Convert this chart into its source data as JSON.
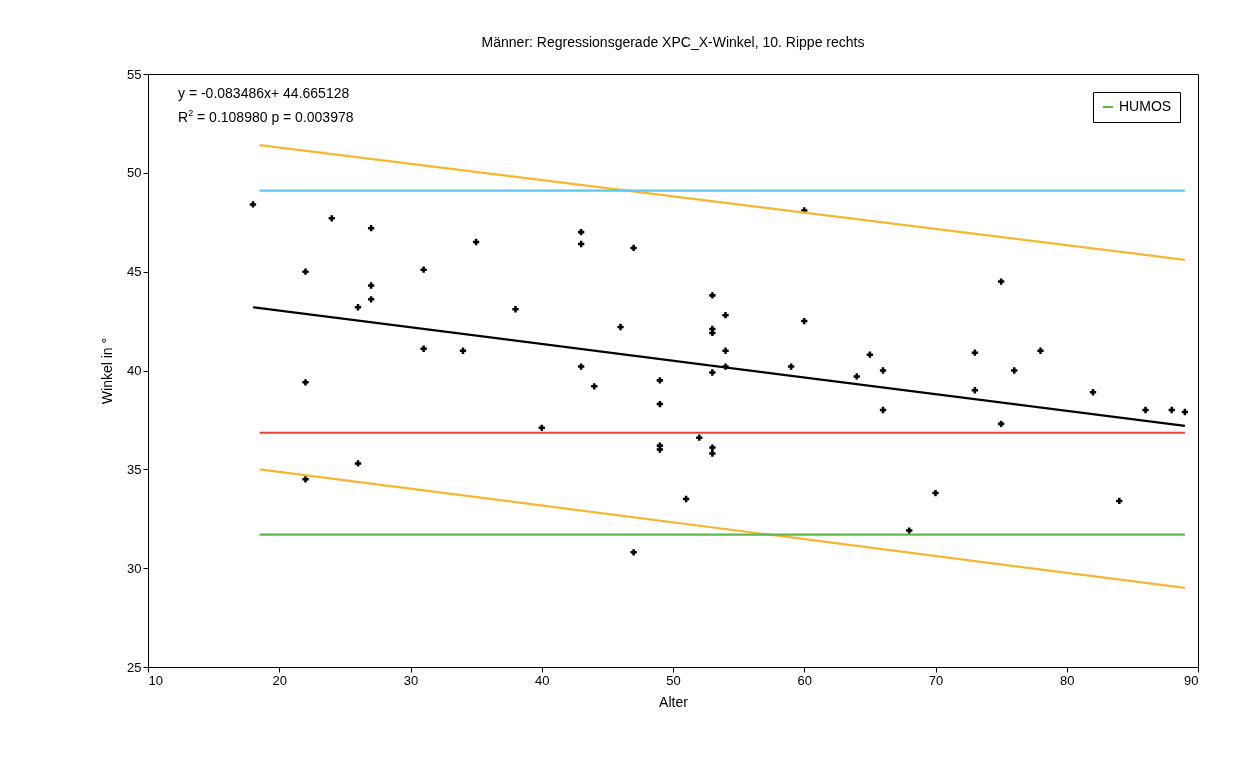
{
  "chart_data": {
    "type": "scatter",
    "title": "Männer: Regressionsgerade XPC_X-Winkel, 10. Rippe rechts",
    "xlabel": "Alter",
    "ylabel": "Winkel in °",
    "annotations": [
      "y = -0.083486x+ 44.665128",
      "R$^{2}$ = 0.108980 p = 0.003978"
    ],
    "xlim": [
      10,
      90
    ],
    "xticks": [
      10,
      20,
      30,
      40,
      50,
      60,
      70,
      80,
      90
    ],
    "ylim": [
      25,
      55
    ],
    "yticks": [
      25,
      30,
      35,
      40,
      45,
      50,
      55
    ],
    "grid": false,
    "legend": "top right",
    "marker": "cross",
    "line_style": "solid",
    "series": [
      {
        "color": "#000000",
        "x": [
          18,
          22,
          22,
          22,
          24,
          26,
          26,
          27,
          27,
          27,
          31,
          31,
          34,
          35,
          38,
          40,
          43,
          43,
          43,
          44,
          46,
          47,
          47,
          49,
          49,
          49,
          49,
          51,
          52,
          53,
          53,
          53,
          53,
          53,
          53,
          54,
          54,
          54,
          59,
          60,
          60,
          64,
          65,
          66,
          66,
          68,
          70,
          73,
          73,
          75,
          75,
          76,
          78,
          82,
          84,
          86,
          88,
          89
        ],
        "values": [
          48.4,
          45.0,
          39.4,
          34.5,
          47.7,
          43.2,
          35.3,
          47.2,
          44.3,
          43.6,
          45.1,
          41.1,
          41.0,
          46.5,
          43.1,
          37.1,
          47.0,
          46.4,
          40.2,
          39.2,
          42.2,
          46.2,
          30.8,
          39.5,
          38.3,
          36.2,
          36.0,
          33.5,
          36.6,
          43.8,
          42.1,
          41.9,
          39.9,
          36.1,
          35.8,
          42.8,
          41.0,
          40.2,
          40.2,
          48.1,
          42.5,
          39.7,
          40.8,
          40.0,
          38.0,
          31.9,
          33.8,
          40.9,
          39.0,
          44.5,
          37.3,
          40.0,
          41.0,
          38.9,
          33.4,
          38.0,
          38.0,
          37.9
        ]
      },
      {
        "type": "line",
        "marker": "none",
        "color": "#000000",
        "x": [
          18,
          89
        ],
        "values": [
          43.2,
          37.2
        ]
      },
      {
        "type": "line",
        "marker": "none",
        "color": "#f5b731",
        "x": [
          18.5,
          89
        ],
        "values": [
          51.4,
          45.6
        ]
      },
      {
        "type": "line",
        "marker": "none",
        "color": "#f5b731",
        "x": [
          18.5,
          89
        ],
        "values": [
          35.0,
          29.0
        ]
      },
      {
        "type": "line",
        "marker": "none",
        "color": "#e8413b",
        "x": [
          18.5,
          89
        ],
        "values": [
          36.85,
          36.85
        ]
      },
      {
        "type": "line",
        "marker": "none",
        "color": "#5bc4ef",
        "x": [
          18.5,
          89
        ],
        "values": [
          49.1,
          49.1
        ]
      },
      {
        "type": "line",
        "marker": "none",
        "name": "HUMOS",
        "color": "#5cb848",
        "x": [
          18.5,
          89
        ],
        "values": [
          31.7,
          31.7
        ]
      }
    ]
  }
}
